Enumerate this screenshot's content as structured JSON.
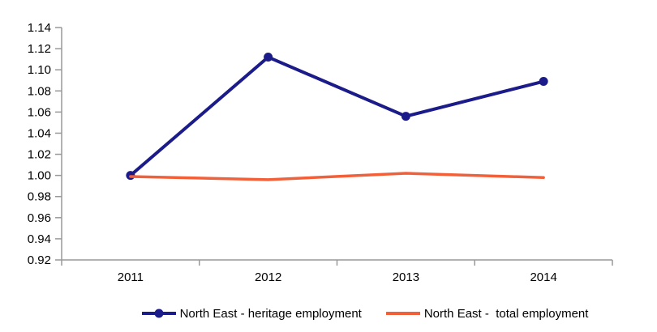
{
  "chart_data": {
    "type": "line",
    "title": "",
    "xlabel": "",
    "ylabel": "",
    "categories": [
      "2011",
      "2012",
      "2013",
      "2014"
    ],
    "series": [
      {
        "name": "North East - heritage employment",
        "color": "#1b1b8a",
        "marker": "circle",
        "marker_radius": 5.5,
        "line_width": 4,
        "values": [
          1.0,
          1.112,
          1.056,
          1.089
        ]
      },
      {
        "name": "North East -  total employment",
        "color": "#f2603a",
        "marker": "none",
        "marker_radius": 0,
        "line_width": 3.5,
        "values": [
          0.999,
          0.996,
          1.002,
          0.998
        ]
      }
    ],
    "ylim": [
      0.92,
      1.14
    ],
    "y_tick_step": 0.02,
    "y_tick_decimals": 2,
    "grid": "off",
    "legend_position": "bottom",
    "axis_color": "#999999",
    "tick_label_color": "#000000",
    "background_color": "#ffffff"
  }
}
